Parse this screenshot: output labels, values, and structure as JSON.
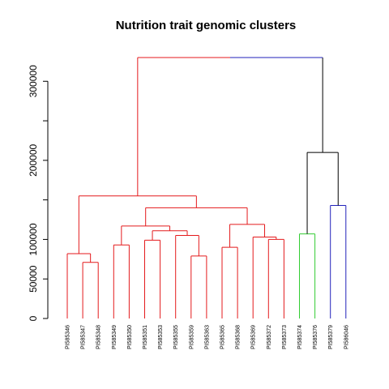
{
  "chart_data": {
    "type": "dendrogram",
    "title": "Nutrition trait genomic clusters",
    "ylim": [
      0,
      330000
    ],
    "y_ticks": [
      {
        "value": 0,
        "label": "0"
      },
      {
        "value": 50000,
        "label": "50000"
      },
      {
        "value": 100000,
        "label": "100000"
      },
      {
        "value": 150000,
        "label": ""
      },
      {
        "value": 200000,
        "label": "200000"
      },
      {
        "value": 250000,
        "label": ""
      },
      {
        "value": 300000,
        "label": "300000"
      }
    ],
    "leaves": [
      "PI585346",
      "PI585347",
      "PI585348",
      "PI585349",
      "PI585350",
      "PI585351",
      "PI585353",
      "PI585355",
      "PI585359",
      "PI585363",
      "PI585365",
      "PI585368",
      "PI585369",
      "PI585372",
      "PI585373",
      "PI585374",
      "PI585376",
      "PI585379",
      "PI586046"
    ],
    "colors": {
      "red": "#e41a1c",
      "green": "#33cc33",
      "blue": "#2222bb",
      "black": "#000000"
    },
    "merges": [
      {
        "id": "a",
        "left": 1,
        "right": 2,
        "height": 71000,
        "color": "red"
      },
      {
        "id": "b",
        "left": 0,
        "right": "a",
        "height": 82000,
        "color": "red"
      },
      {
        "id": "c",
        "left": 3,
        "right": 4,
        "height": 93000,
        "color": "red"
      },
      {
        "id": "d",
        "left": 5,
        "right": 6,
        "height": 99000,
        "color": "red"
      },
      {
        "id": "e",
        "left": 8,
        "right": 9,
        "height": 79000,
        "color": "red"
      },
      {
        "id": "f",
        "left": 7,
        "right": "e",
        "height": 105000,
        "color": "red"
      },
      {
        "id": "g",
        "left": "d",
        "right": "f",
        "height": 111000,
        "color": "red"
      },
      {
        "id": "h",
        "left": "c",
        "right": "g",
        "height": 117000,
        "color": "red"
      },
      {
        "id": "i",
        "left": 10,
        "right": 11,
        "height": 90000,
        "color": "red"
      },
      {
        "id": "j",
        "left": 13,
        "right": 14,
        "height": 100000,
        "color": "red"
      },
      {
        "id": "k",
        "left": 12,
        "right": "j",
        "height": 103000,
        "color": "red"
      },
      {
        "id": "l",
        "left": "i",
        "right": "k",
        "height": 119000,
        "color": "red"
      },
      {
        "id": "m",
        "left": "h",
        "right": "l",
        "height": 140000,
        "color": "red"
      },
      {
        "id": "n",
        "left": "b",
        "right": "m",
        "height": 155000,
        "color": "red"
      },
      {
        "id": "o",
        "left": 15,
        "right": 16,
        "height": 107000,
        "color": "green"
      },
      {
        "id": "p",
        "left": 17,
        "right": 18,
        "height": 143000,
        "color": "blue"
      },
      {
        "id": "q",
        "left": "o",
        "right": "p",
        "height": 210000,
        "color": "black"
      },
      {
        "id": "root",
        "left": "n",
        "right": "q",
        "height": 330000,
        "color": "black"
      }
    ]
  }
}
